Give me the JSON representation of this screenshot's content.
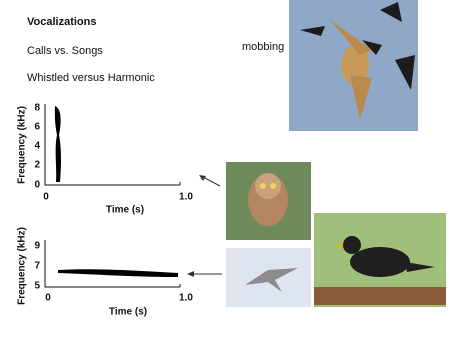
{
  "heading": {
    "title": "Vocalizations",
    "lines": [
      "Calls vs. Songs",
      "Whistled versus Harmonic"
    ]
  },
  "annotation": "mobbing",
  "spectrograms": [
    {
      "y_label": "Frequency (kHz)",
      "y_ticks": [
        "8",
        "6",
        "4",
        "2",
        "0"
      ],
      "x_ticks": [
        "0",
        "1.0"
      ],
      "x_label": "Time (s)"
    },
    {
      "y_label": "Frequency (kHz)",
      "y_ticks": [
        "9",
        "7",
        "5"
      ],
      "x_ticks": [
        "0",
        "1.0"
      ],
      "x_label": "Time (s)"
    }
  ]
}
